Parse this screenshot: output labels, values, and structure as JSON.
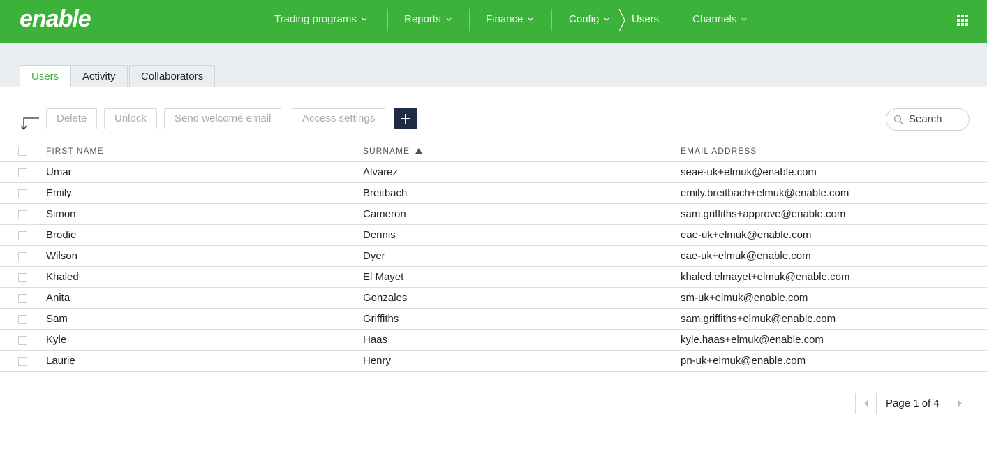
{
  "header": {
    "logo": "enable",
    "nav": [
      "Trading programs",
      "Reports",
      "Finance",
      "Config",
      "Users",
      "Channels"
    ]
  },
  "tabs": {
    "items": [
      "Users",
      "Activity",
      "Collaborators"
    ]
  },
  "toolbar": {
    "buttons": [
      "Delete",
      "Unlock",
      "Send welcome email",
      "Access settings"
    ],
    "search": "Search"
  },
  "table": {
    "columns": [
      "FIRST NAME",
      "SURNAME",
      "EMAIL ADDRESS"
    ],
    "rows": [
      [
        "Umar",
        "Alvarez",
        "seae-uk+elmuk@enable.com"
      ],
      [
        "Emily",
        "Breitbach",
        "emily.breitbach+elmuk@enable.com"
      ],
      [
        "Simon",
        "Cameron",
        "sam.griffiths+approve@enable.com"
      ],
      [
        "Brodie",
        "Dennis",
        "eae-uk+elmuk@enable.com"
      ],
      [
        "Wilson",
        "Dyer",
        "cae-uk+elmuk@enable.com"
      ],
      [
        "Khaled",
        "El Mayet",
        "khaled.elmayet+elmuk@enable.com"
      ],
      [
        "Anita",
        "Gonzales",
        "sm-uk+elmuk@enable.com"
      ],
      [
        "Sam",
        "Griffiths",
        "sam.griffiths+elmuk@enable.com"
      ],
      [
        "Kyle",
        "Haas",
        "kyle.haas+elmuk@enable.com"
      ],
      [
        "Laurie",
        "Henry",
        "pn-uk+elmuk@enable.com"
      ]
    ]
  },
  "pagination": {
    "label": "Page 1 of 4"
  }
}
